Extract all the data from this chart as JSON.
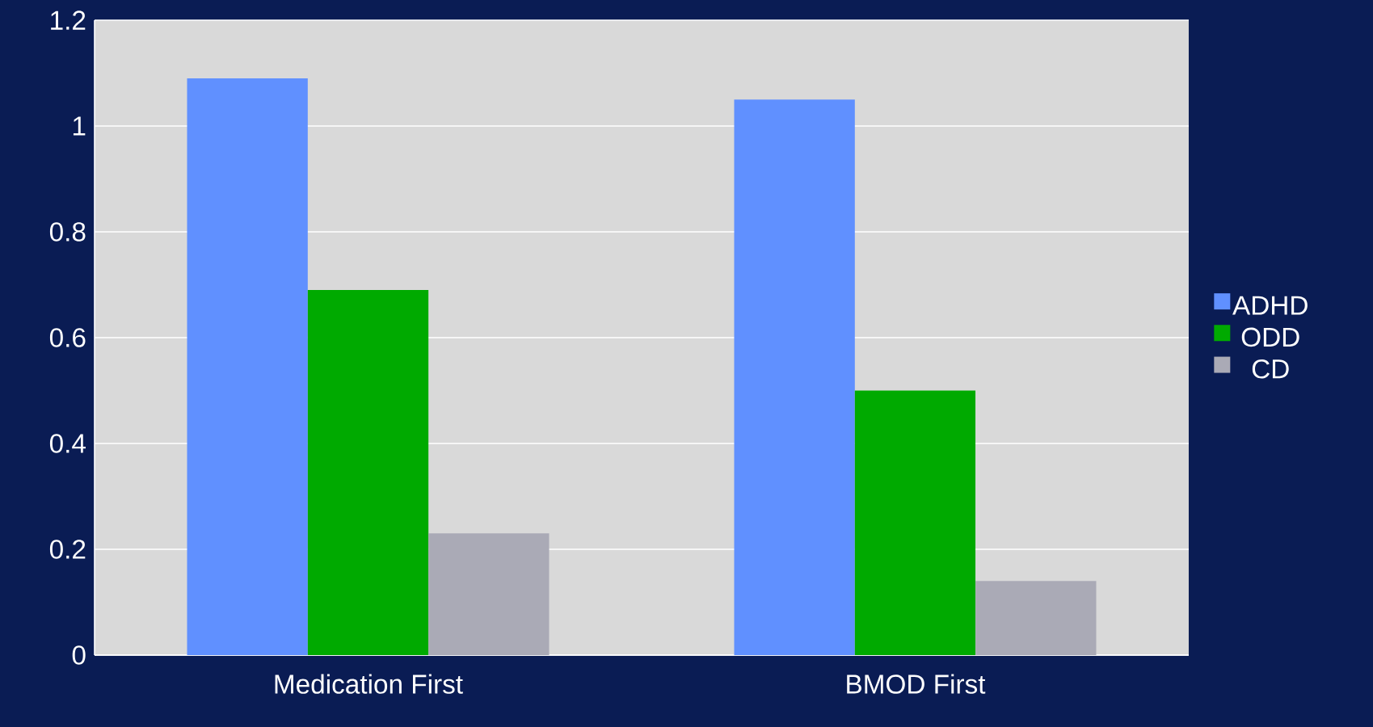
{
  "chart_data": {
    "type": "bar",
    "categories": [
      "Medication First",
      "BMOD First"
    ],
    "series": [
      {
        "name": "ADHD",
        "color": "#6090ff",
        "values": [
          1.09,
          1.05
        ]
      },
      {
        "name": "ODD",
        "color": "#00aa00",
        "values": [
          0.69,
          0.5
        ]
      },
      {
        "name": "CD",
        "color": "#aaaab6",
        "values": [
          0.23,
          0.14
        ]
      }
    ],
    "ylim": [
      0,
      1.2
    ],
    "yticks": [
      0,
      0.2,
      0.4,
      0.6,
      0.8,
      1,
      1.2
    ],
    "grid": "y",
    "legend": "right"
  }
}
